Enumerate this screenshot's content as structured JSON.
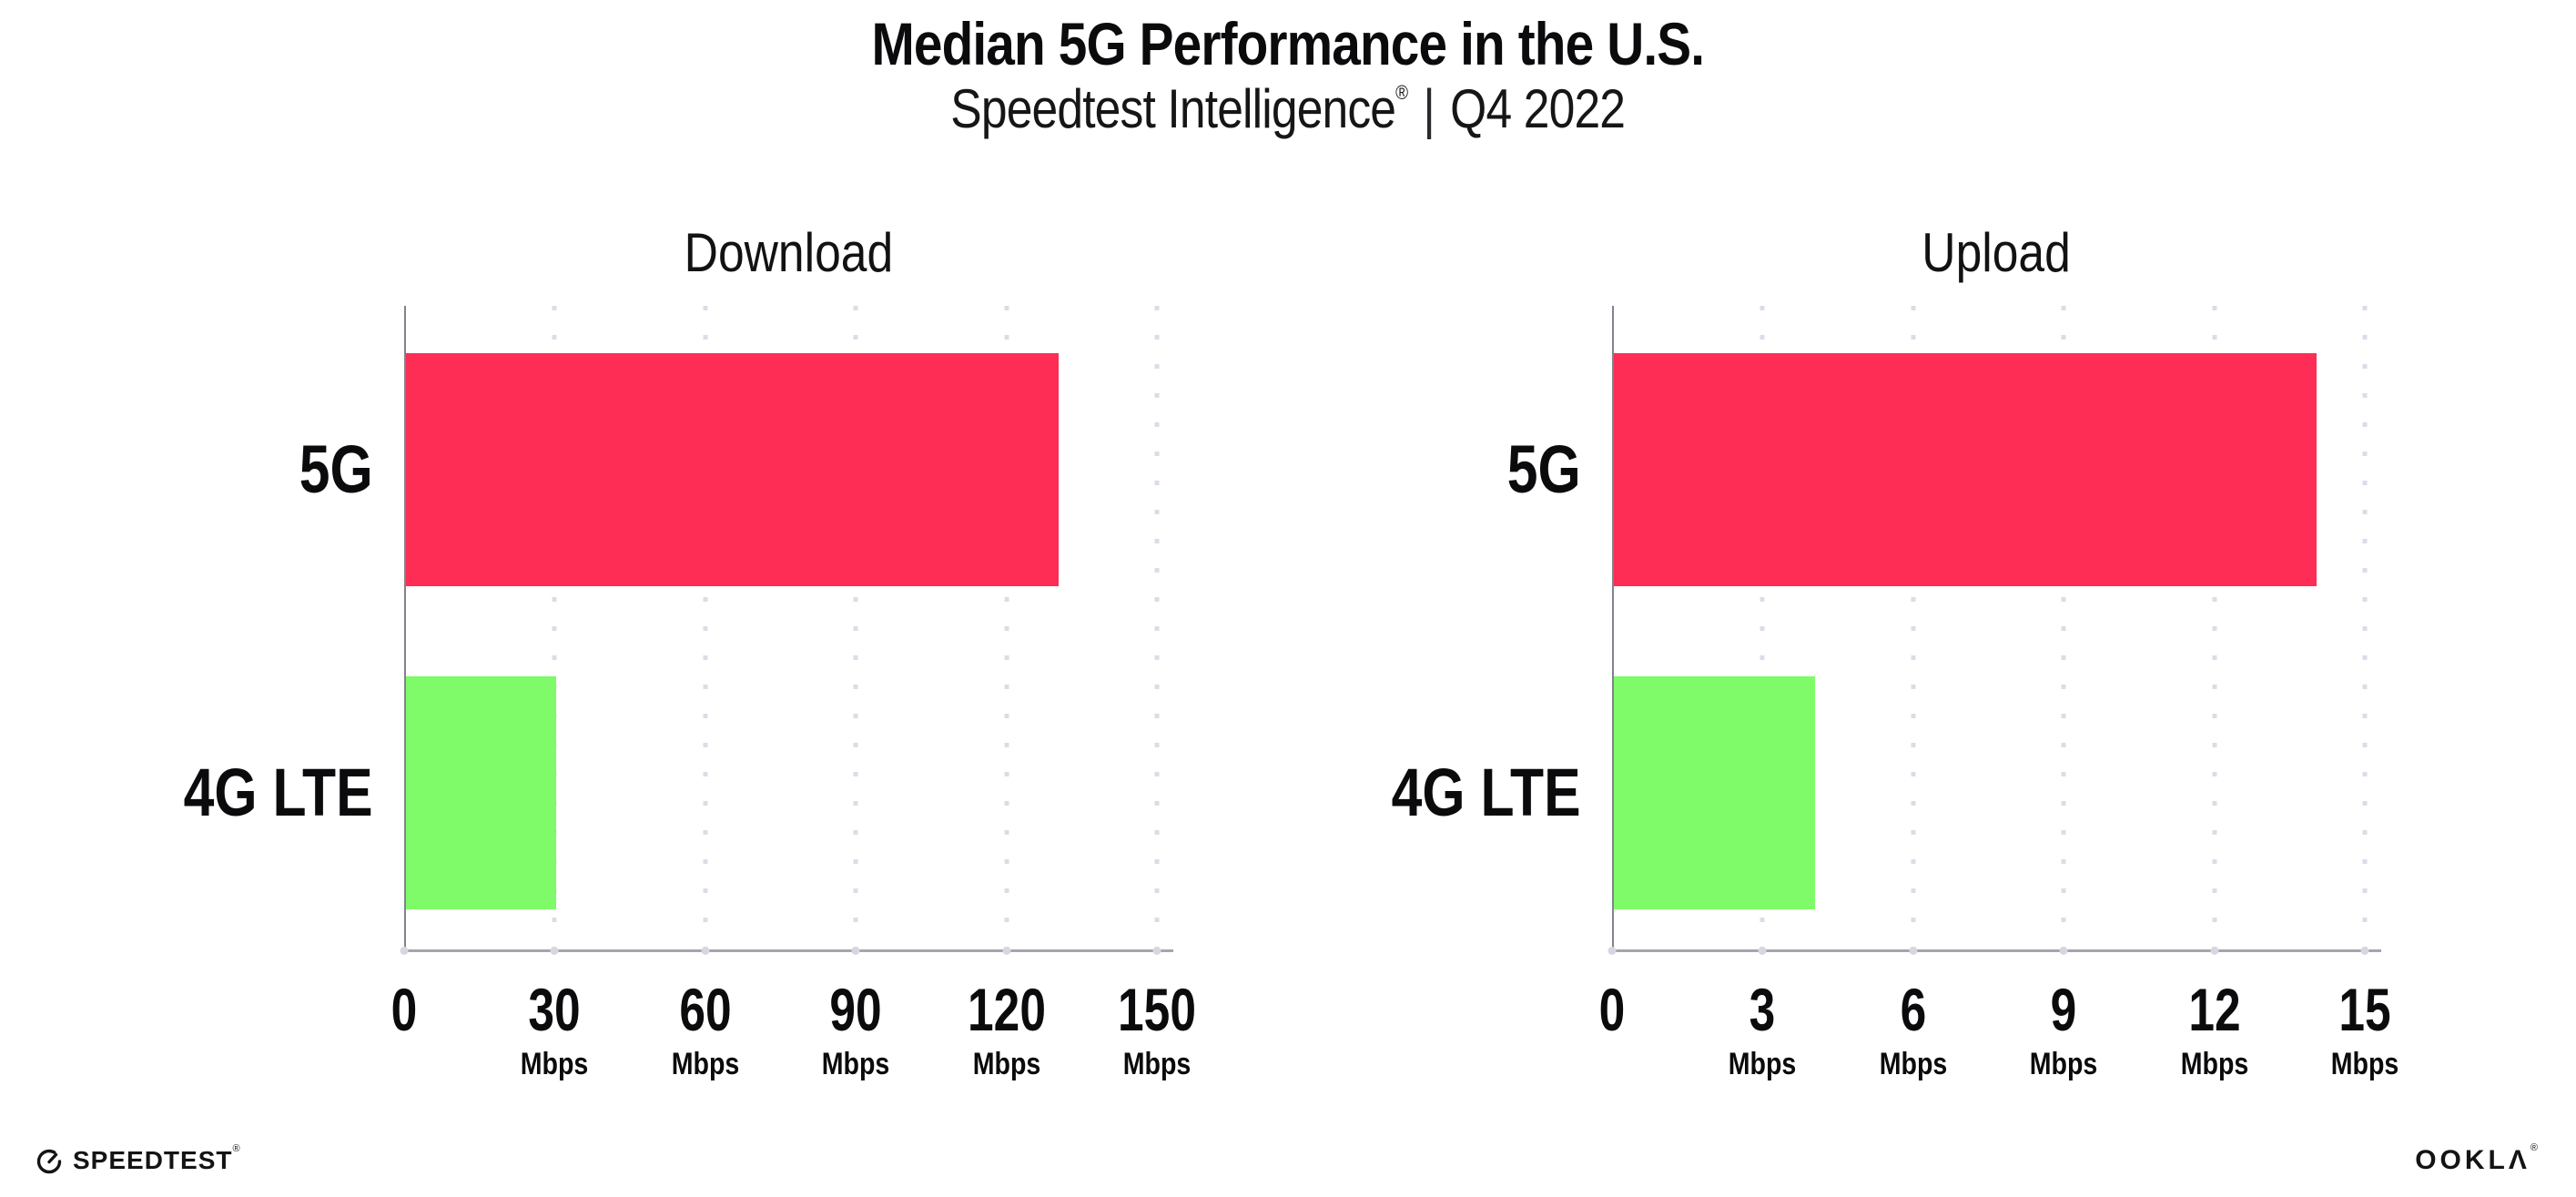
{
  "header": {
    "title": "Median 5G Performance in the U.S.",
    "subtitle": {
      "brand": "Speedtest Intelligence",
      "registered_mark": "®",
      "separator": "|",
      "period": "Q4 2022"
    }
  },
  "chart_data": [
    {
      "type": "bar",
      "orientation": "horizontal",
      "title": "Download",
      "categories": [
        "5G",
        "4G LTE"
      ],
      "values": [
        130,
        30
      ],
      "unit": "Mbps",
      "xlim": [
        0,
        150
      ],
      "xticks": [
        0,
        30,
        60,
        90,
        120,
        150
      ],
      "bar_colors": [
        "#fd2d55",
        "#7ffa68"
      ],
      "grid": "vertical-dotted",
      "legend": "none"
    },
    {
      "type": "bar",
      "orientation": "horizontal",
      "title": "Upload",
      "categories": [
        "5G",
        "4G LTE"
      ],
      "values": [
        14,
        4
      ],
      "unit": "Mbps",
      "xlim": [
        0,
        15
      ],
      "xticks": [
        0,
        3,
        6,
        9,
        12,
        15
      ],
      "bar_colors": [
        "#fd2d55",
        "#7ffa68"
      ],
      "grid": "vertical-dotted",
      "legend": "none"
    }
  ],
  "footer": {
    "speedtest_wordmark": "SPEEDTEST",
    "speedtest_mark": "®",
    "ookla_wordmark": "OOKLA",
    "ookla_mark": "®"
  },
  "colors": {
    "bar_5g": "#fd2d55",
    "bar_4g_lte": "#7ffa68",
    "gridline": "#dcdce8",
    "y_axis": "#82828c",
    "x_axis": "#a5a5ad",
    "text": "#0b0b0d",
    "background": "#ffffff"
  }
}
